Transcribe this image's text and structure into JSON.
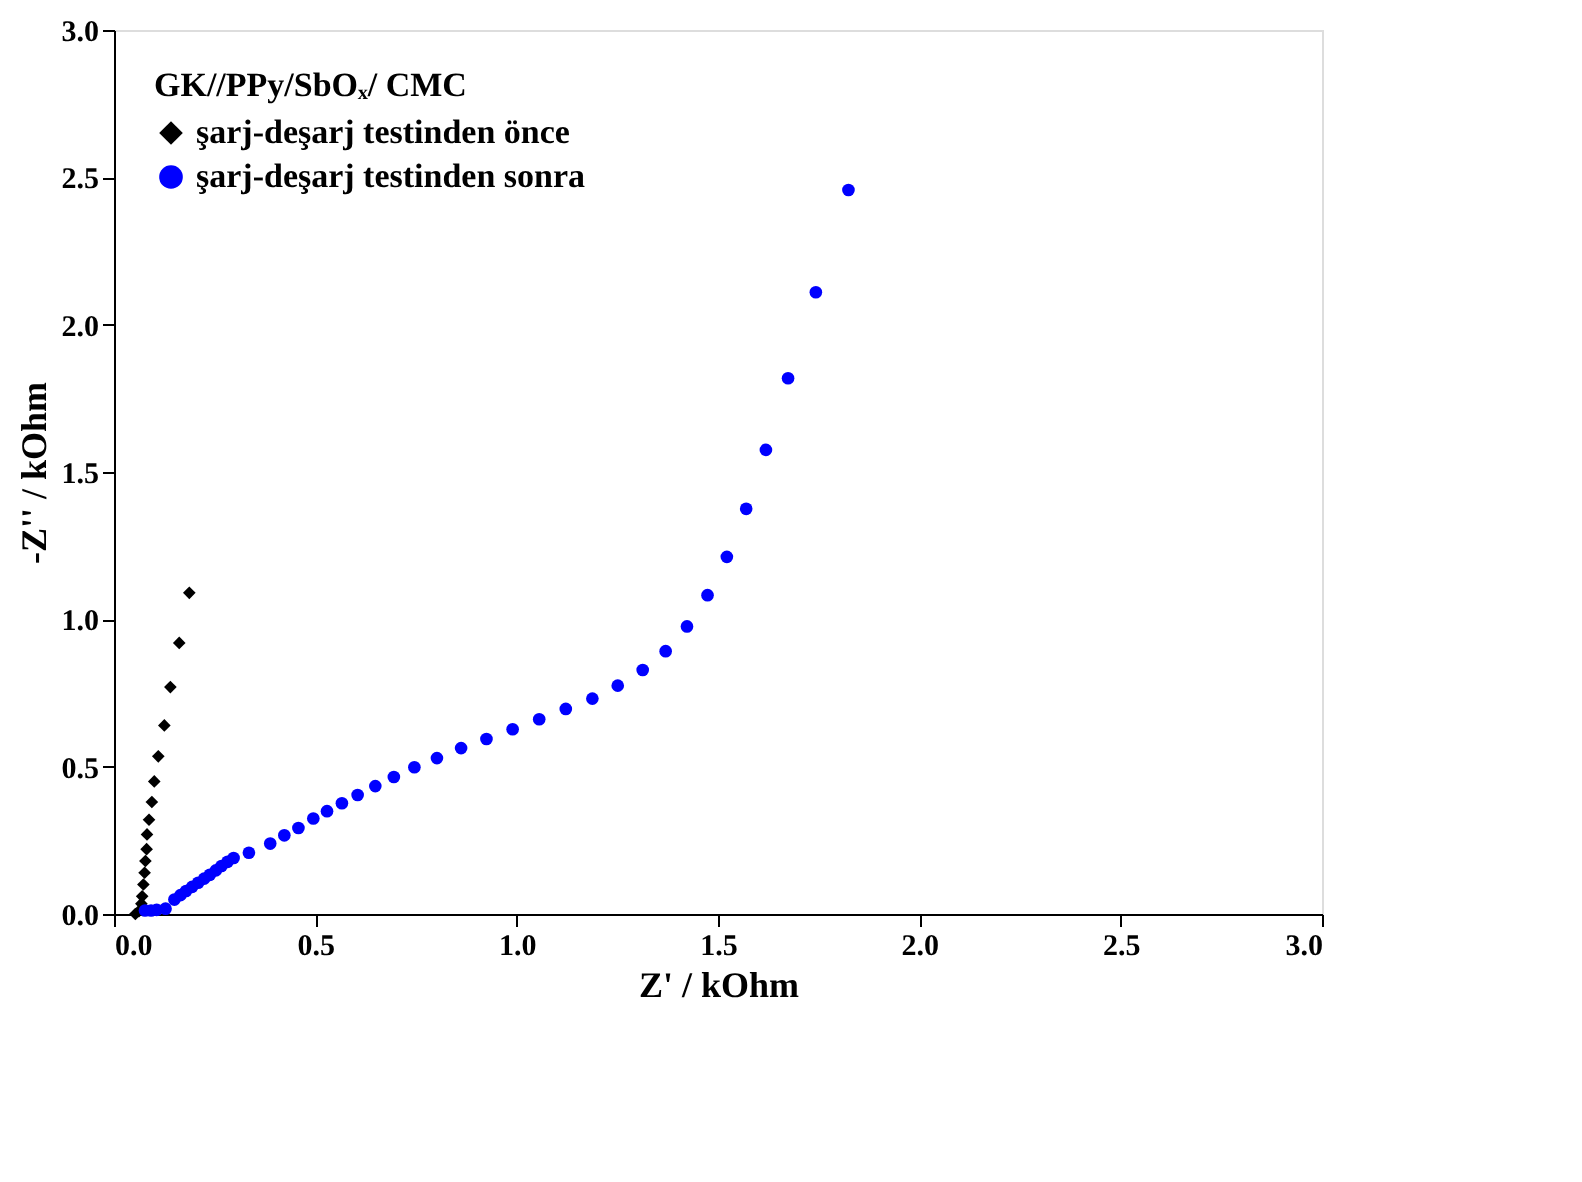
{
  "chart_data": {
    "type": "scatter",
    "xlabel": "Z' / kOhm",
    "ylabel": "-Z'' / kOhm",
    "legend_title": "GK//PPy/SbOₓ/ CMC",
    "legend": "top left",
    "grid": false,
    "xlim": [
      0,
      3
    ],
    "ylim": [
      0,
      3
    ],
    "xticks": [
      {
        "value": 0,
        "label": "0.0"
      },
      {
        "value": 0.5,
        "label": "0.5"
      },
      {
        "value": 1,
        "label": "1.0"
      },
      {
        "value": 1.5,
        "label": "1.5"
      },
      {
        "value": 2,
        "label": "2.0"
      },
      {
        "value": 2.5,
        "label": "2.5"
      },
      {
        "value": 3,
        "label": "3.0"
      }
    ],
    "yticks": [
      {
        "value": 0,
        "label": "0.0"
      },
      {
        "value": 0.5,
        "label": "0.5"
      },
      {
        "value": 1,
        "label": "1.0"
      },
      {
        "value": 1.5,
        "label": "1.5"
      },
      {
        "value": 2,
        "label": "2.0"
      },
      {
        "value": 2.5,
        "label": "2.5"
      },
      {
        "value": 3,
        "label": "3.0"
      }
    ],
    "series": [
      {
        "name": "şarj-deşarj testinden önce",
        "color": "#000000",
        "marker": "diamond",
        "x": [
          0.053,
          0.062,
          0.068,
          0.07,
          0.073,
          0.076,
          0.078,
          0.081,
          0.082,
          0.087,
          0.094,
          0.1,
          0.11,
          0.125,
          0.14,
          0.162,
          0.187
        ],
        "values": [
          0.0,
          0.01,
          0.035,
          0.06,
          0.1,
          0.14,
          0.18,
          0.22,
          0.27,
          0.32,
          0.38,
          0.45,
          0.535,
          0.64,
          0.77,
          0.92,
          1.09
        ]
      },
      {
        "name": "şarj-deşarj testinden sonra",
        "color": "#0000ff",
        "marker": "circle",
        "x": [
          0.077,
          0.092,
          0.106,
          0.128,
          0.15,
          0.165,
          0.179,
          0.194,
          0.209,
          0.224,
          0.238,
          0.253,
          0.267,
          0.282,
          0.297,
          0.335,
          0.388,
          0.423,
          0.458,
          0.495,
          0.529,
          0.566,
          0.605,
          0.649,
          0.695,
          0.746,
          0.802,
          0.862,
          0.925,
          0.99,
          1.056,
          1.122,
          1.188,
          1.251,
          1.313,
          1.37,
          1.423,
          1.474,
          1.522,
          1.57,
          1.619,
          1.674,
          1.743,
          1.824
        ],
        "values": [
          0.012,
          0.012,
          0.014,
          0.018,
          0.049,
          0.064,
          0.078,
          0.092,
          0.106,
          0.12,
          0.133,
          0.148,
          0.163,
          0.177,
          0.19,
          0.208,
          0.239,
          0.267,
          0.292,
          0.324,
          0.349,
          0.376,
          0.404,
          0.434,
          0.465,
          0.498,
          0.529,
          0.563,
          0.594,
          0.627,
          0.661,
          0.696,
          0.731,
          0.775,
          0.828,
          0.892,
          0.976,
          1.082,
          1.212,
          1.375,
          1.575,
          1.818,
          2.11,
          2.457
        ]
      }
    ]
  }
}
